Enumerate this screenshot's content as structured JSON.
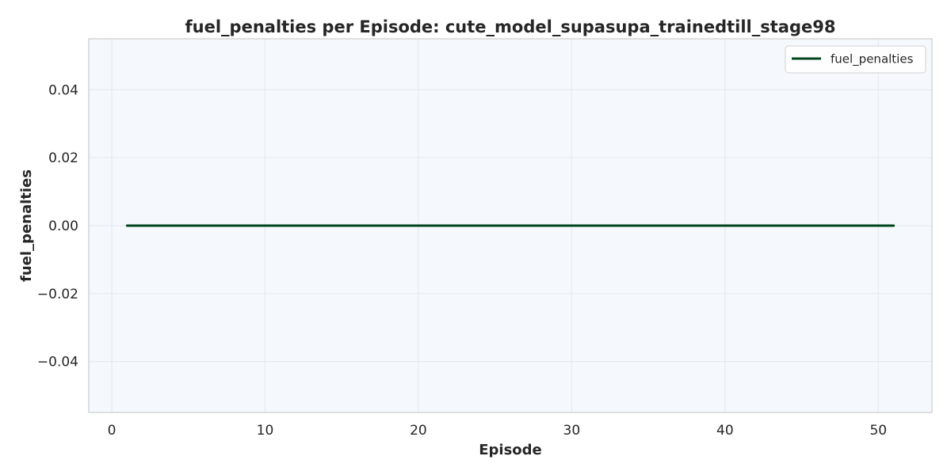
{
  "chart_data": {
    "type": "line",
    "title": "fuel_penalties per Episode: cute_model_supasupa_trainedtill_stage98",
    "xlabel": "Episode",
    "ylabel": "fuel_penalties",
    "xlim": [
      -1.5,
      53.5
    ],
    "ylim": [
      -0.055,
      0.055
    ],
    "x_ticks": [
      0,
      10,
      20,
      30,
      40,
      50
    ],
    "y_ticks": [
      -0.04,
      -0.02,
      0.0,
      0.02,
      0.04
    ],
    "x_tick_labels": [
      "0",
      "10",
      "20",
      "30",
      "40",
      "50"
    ],
    "y_tick_labels": [
      "−0.04",
      "−0.02",
      "0.00",
      "0.02",
      "0.04"
    ],
    "grid": true,
    "legend_position": "top-right",
    "series": [
      {
        "name": "fuel_penalties",
        "color": "#00441b",
        "x": [
          1,
          2,
          3,
          4,
          5,
          6,
          7,
          8,
          9,
          10,
          11,
          12,
          13,
          14,
          15,
          16,
          17,
          18,
          19,
          20,
          21,
          22,
          23,
          24,
          25,
          26,
          27,
          28,
          29,
          30,
          31,
          32,
          33,
          34,
          35,
          36,
          37,
          38,
          39,
          40,
          41,
          42,
          43,
          44,
          45,
          46,
          47,
          48,
          49,
          50,
          51
        ],
        "y": [
          0,
          0,
          0,
          0,
          0,
          0,
          0,
          0,
          0,
          0,
          0,
          0,
          0,
          0,
          0,
          0,
          0,
          0,
          0,
          0,
          0,
          0,
          0,
          0,
          0,
          0,
          0,
          0,
          0,
          0,
          0,
          0,
          0,
          0,
          0,
          0,
          0,
          0,
          0,
          0,
          0,
          0,
          0,
          0,
          0,
          0,
          0,
          0,
          0,
          0,
          0
        ]
      }
    ]
  },
  "colors": {
    "plot_background": "#f5f9fd",
    "grid": "#e3e8ee",
    "axes_edge": "#cccccc",
    "text": "#262626"
  }
}
